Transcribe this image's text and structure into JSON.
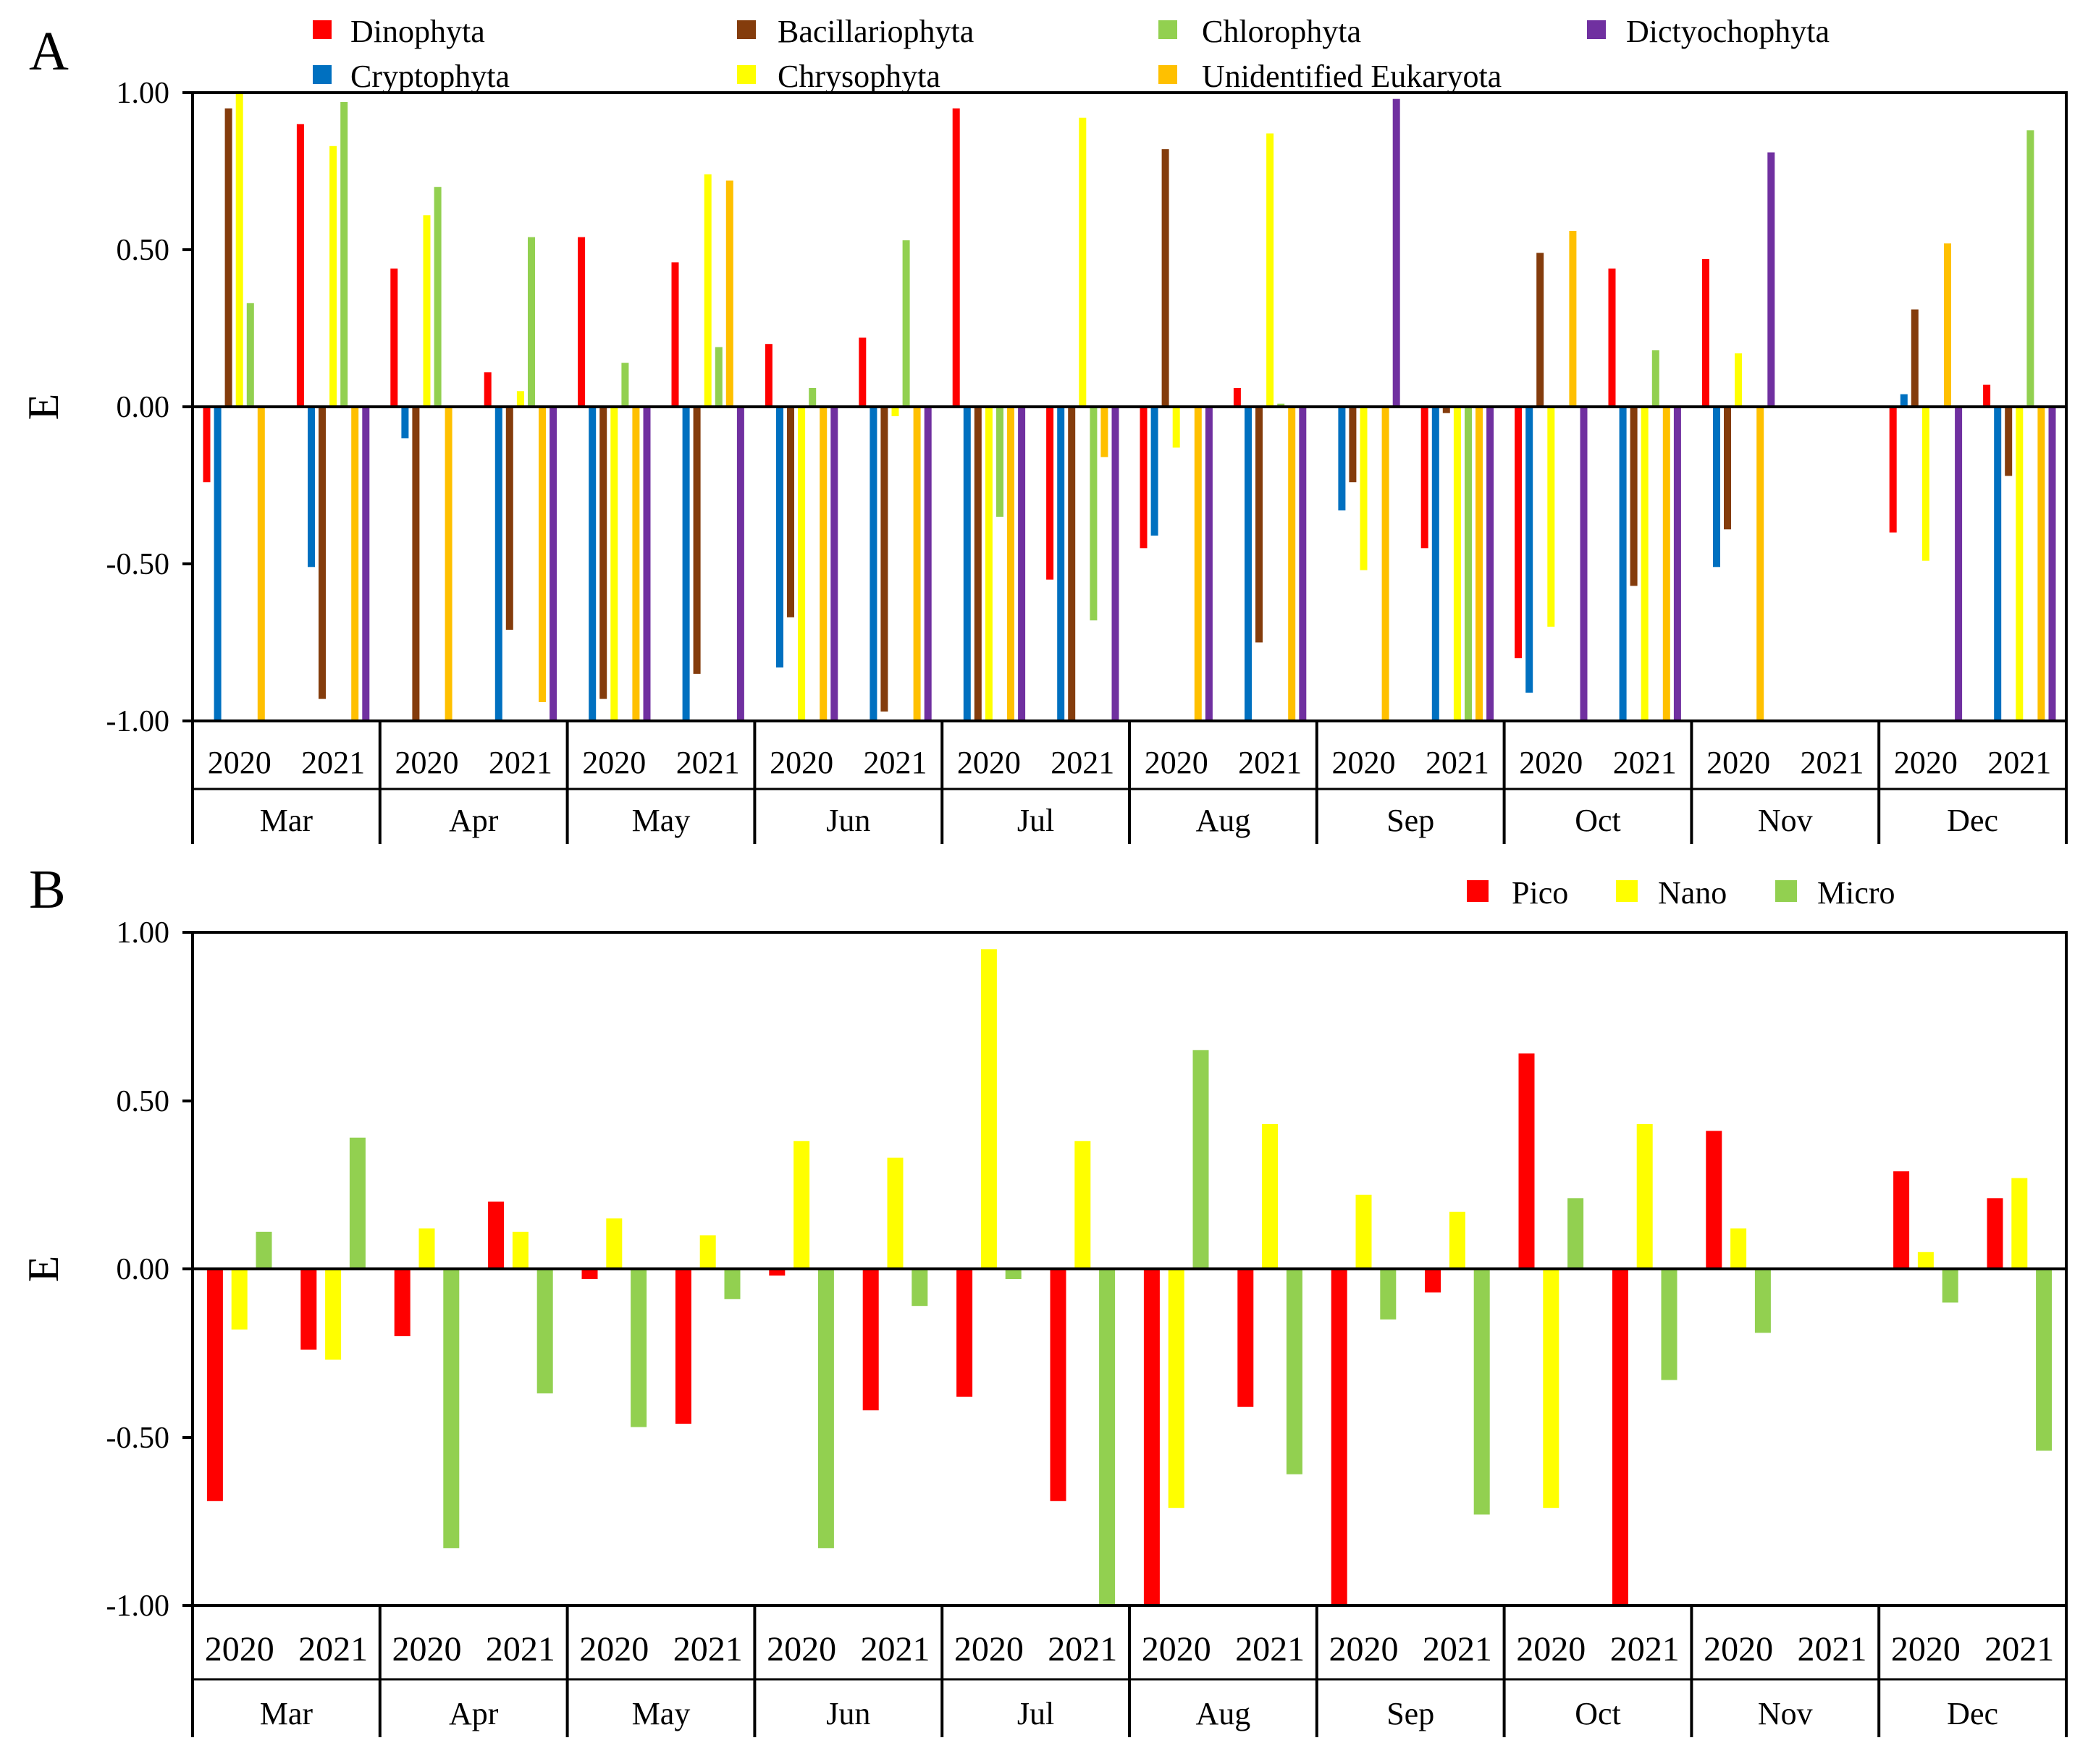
{
  "figure": {
    "panel_a_label": "A",
    "panel_b_label": "B"
  },
  "chart_data": [
    {
      "panel": "A",
      "type": "bar",
      "ylabel": "E",
      "ylim": [
        -1.0,
        1.0
      ],
      "yticks": [
        "1.00",
        "0.50",
        "0.00",
        "-0.50",
        "-1.00"
      ],
      "ytick_values": [
        1.0,
        0.5,
        0.0,
        -0.5,
        -1.0
      ],
      "grid": false,
      "legend_position": "top",
      "months": [
        "Mar",
        "Apr",
        "May",
        "Jun",
        "Jul",
        "Aug",
        "Sep",
        "Oct",
        "Nov",
        "Dec"
      ],
      "years": [
        "2020",
        "2021"
      ],
      "series": [
        {
          "name": "Dinophyta",
          "color": "#ff0000",
          "values": [
            [
              -0.24,
              0.9
            ],
            [
              0.44,
              0.11
            ],
            [
              0.54,
              0.46
            ],
            [
              0.2,
              0.22
            ],
            [
              0.95,
              -0.55
            ],
            [
              -0.45,
              0.06
            ],
            [
              null,
              -0.45
            ],
            [
              -0.8,
              0.44
            ],
            [
              0.47,
              null
            ],
            [
              -0.4,
              0.07
            ]
          ]
        },
        {
          "name": "Cryptophyta",
          "color": "#0070c0",
          "values": [
            [
              -1.0,
              -0.51
            ],
            [
              -0.1,
              -1.0
            ],
            [
              -1.0,
              -1.0
            ],
            [
              -0.83,
              -1.0
            ],
            [
              -1.0,
              -1.0
            ],
            [
              -0.41,
              -1.0
            ],
            [
              -0.33,
              -1.0
            ],
            [
              -0.91,
              -1.0
            ],
            [
              -0.51,
              null
            ],
            [
              0.04,
              -1.0
            ]
          ]
        },
        {
          "name": "Bacillariophyta",
          "color": "#843c0c",
          "values": [
            [
              0.95,
              -0.93
            ],
            [
              -1.0,
              -0.71
            ],
            [
              -0.93,
              -0.85
            ],
            [
              -0.67,
              -0.97
            ],
            [
              -1.0,
              -1.0
            ],
            [
              0.82,
              -0.75
            ],
            [
              -0.24,
              -0.02
            ],
            [
              0.49,
              -0.57
            ],
            [
              -0.39,
              null
            ],
            [
              0.31,
              -0.22
            ]
          ]
        },
        {
          "name": "Chrysophyta",
          "color": "#ffff00",
          "values": [
            [
              1.0,
              0.83
            ],
            [
              0.61,
              0.05
            ],
            [
              -1.0,
              0.74
            ],
            [
              -1.0,
              -0.03
            ],
            [
              -1.0,
              0.92
            ],
            [
              -0.13,
              0.87
            ],
            [
              -0.52,
              -1.0
            ],
            [
              -0.7,
              -1.0
            ],
            [
              0.17,
              null
            ],
            [
              -0.49,
              -1.0
            ]
          ]
        },
        {
          "name": "Chlorophyta",
          "color": "#92d050",
          "values": [
            [
              0.33,
              0.97
            ],
            [
              0.7,
              0.54
            ],
            [
              0.14,
              0.19
            ],
            [
              0.06,
              0.53
            ],
            [
              -0.35,
              -0.68
            ],
            [
              null,
              0.01
            ],
            [
              null,
              -1.0
            ],
            [
              null,
              0.18
            ],
            [
              null,
              null
            ],
            [
              null,
              0.88
            ]
          ]
        },
        {
          "name": "Unidentified Eukaryota",
          "color": "#ffc000",
          "values": [
            [
              -1.0,
              -1.0
            ],
            [
              -1.0,
              -0.94
            ],
            [
              -1.0,
              0.72
            ],
            [
              -1.0,
              -1.0
            ],
            [
              -1.0,
              -0.16
            ],
            [
              -1.0,
              -1.0
            ],
            [
              -1.0,
              -1.0
            ],
            [
              0.56,
              -1.0
            ],
            [
              -1.0,
              null
            ],
            [
              0.52,
              -1.0
            ]
          ]
        },
        {
          "name": "Dictyochophyta",
          "color": "#7030a0",
          "values": [
            [
              null,
              -1.0
            ],
            [
              null,
              -1.0
            ],
            [
              -1.0,
              -1.0
            ],
            [
              -1.0,
              -1.0
            ],
            [
              -1.0,
              -1.0
            ],
            [
              -1.0,
              -1.0
            ],
            [
              0.98,
              -1.0
            ],
            [
              -1.0,
              -1.0
            ],
            [
              0.81,
              null
            ],
            [
              -1.0,
              -1.0
            ]
          ]
        }
      ]
    },
    {
      "panel": "B",
      "type": "bar",
      "ylabel": "E",
      "ylim": [
        -1.0,
        1.0
      ],
      "yticks": [
        "1.00",
        "0.50",
        "0.00",
        "-0.50",
        "-1.00"
      ],
      "ytick_values": [
        1.0,
        0.5,
        0.0,
        -0.5,
        -1.0
      ],
      "grid": false,
      "legend_position": "top-right",
      "months": [
        "Mar",
        "Apr",
        "May",
        "Jun",
        "Jul",
        "Aug",
        "Sep",
        "Oct",
        "Nov",
        "Dec"
      ],
      "years": [
        "2020",
        "2021"
      ],
      "series": [
        {
          "name": "Pico",
          "color": "#ff0000",
          "values": [
            [
              -0.69,
              -0.24
            ],
            [
              -0.2,
              0.2
            ],
            [
              -0.03,
              -0.46
            ],
            [
              -0.02,
              -0.42
            ],
            [
              -0.38,
              -0.69
            ],
            [
              -1.0,
              -0.41
            ],
            [
              -1.0,
              -0.07
            ],
            [
              0.64,
              -1.0
            ],
            [
              0.41,
              null
            ],
            [
              0.29,
              0.21
            ]
          ]
        },
        {
          "name": "Nano",
          "color": "#ffff00",
          "values": [
            [
              -0.18,
              -0.27
            ],
            [
              0.12,
              0.11
            ],
            [
              0.15,
              0.1
            ],
            [
              0.38,
              0.33
            ],
            [
              0.95,
              0.38
            ],
            [
              -0.71,
              0.43
            ],
            [
              0.22,
              0.17
            ],
            [
              -0.71,
              0.43
            ],
            [
              0.12,
              null
            ],
            [
              0.05,
              0.27
            ]
          ]
        },
        {
          "name": "Micro",
          "color": "#92d050",
          "values": [
            [
              0.11,
              0.39
            ],
            [
              -0.83,
              -0.37
            ],
            [
              -0.47,
              -0.09
            ],
            [
              -0.83,
              -0.11
            ],
            [
              -0.03,
              -1.0
            ],
            [
              0.65,
              -0.61
            ],
            [
              -0.15,
              -0.73
            ],
            [
              0.21,
              -0.33
            ],
            [
              -0.19,
              null
            ],
            [
              -0.1,
              -0.54
            ]
          ]
        }
      ]
    }
  ]
}
